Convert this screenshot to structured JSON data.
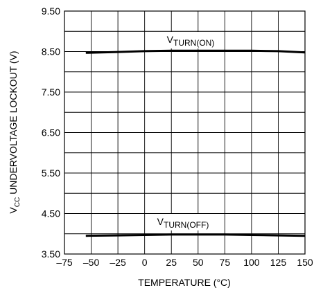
{
  "chart_data": {
    "type": "line",
    "xlabel": "TEMPERATURE (°C)",
    "ylabel": {
      "pre": "V",
      "sub": "CC",
      "post": " UNDERVOLTAGE LOCKOUT (V)"
    },
    "xlim": [
      -75,
      150
    ],
    "ylim": [
      3.5,
      9.5
    ],
    "x_ticks": [
      -75,
      -50,
      -25,
      0,
      25,
      50,
      75,
      100,
      125,
      150
    ],
    "x_tick_labels": [
      "–75",
      "–50",
      "–25",
      "0",
      "25",
      "50",
      "75",
      "100",
      "125",
      "150"
    ],
    "y_ticks": [
      3.5,
      4.5,
      5.5,
      6.5,
      7.5,
      8.5,
      9.5
    ],
    "y_tick_labels": [
      "3.50",
      "4.50",
      "5.50",
      "6.50",
      "7.50",
      "8.50",
      "9.50"
    ],
    "grid": true,
    "series": [
      {
        "name": {
          "pre": "V",
          "sub": "TURN(ON)"
        },
        "x": [
          -55,
          -25,
          0,
          25,
          50,
          75,
          100,
          125,
          150
        ],
        "y": [
          8.47,
          8.49,
          8.51,
          8.52,
          8.52,
          8.52,
          8.52,
          8.51,
          8.48
        ]
      },
      {
        "name": {
          "pre": "V",
          "sub": "TURN(OFF)"
        },
        "x": [
          -55,
          -25,
          0,
          25,
          50,
          75,
          100,
          125,
          150
        ],
        "y": [
          3.95,
          3.96,
          3.97,
          3.98,
          3.98,
          3.98,
          3.97,
          3.96,
          3.95
        ]
      }
    ]
  }
}
